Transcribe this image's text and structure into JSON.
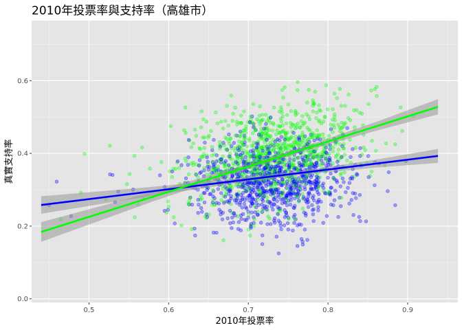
{
  "chart_data": {
    "type": "scatter",
    "title": "2010年投票率與支持率（高雄市）",
    "xlabel": "2010年投票率",
    "ylabel": "真實支持率",
    "xlim": [
      0.428,
      0.963
    ],
    "ylim": [
      -0.01,
      0.765
    ],
    "x_ticks": [
      0.5,
      0.6,
      0.7,
      0.8,
      0.9
    ],
    "x_tick_labels": [
      "0.5",
      "0.6",
      "0.7",
      "0.8",
      "0.9"
    ],
    "y_ticks": [
      0.0,
      0.2,
      0.4,
      0.6
    ],
    "y_tick_labels": [
      "0.0",
      "0.2",
      "0.4",
      "0.6"
    ],
    "grid": true,
    "legend": "none",
    "series": [
      {
        "color": "#0000ff",
        "points_shown": 900,
        "trend": {
          "x": [
            0.44,
            0.938
          ],
          "y": [
            0.258,
            0.393
          ]
        },
        "x_center": 0.73,
        "x_spread": 0.052,
        "y_center": 0.325,
        "y_spread": 0.06,
        "band_x": [
          0.44,
          0.58,
          0.7,
          0.78,
          0.86,
          0.938
        ],
        "band_halfwidth": [
          0.024,
          0.012,
          0.006,
          0.006,
          0.011,
          0.019
        ]
      },
      {
        "color": "#00ff00",
        "points_shown": 900,
        "trend": {
          "x": [
            0.44,
            0.938
          ],
          "y": [
            0.184,
            0.528
          ]
        },
        "x_center": 0.73,
        "x_spread": 0.052,
        "y_center": 0.395,
        "y_spread": 0.07,
        "band_x": [
          0.44,
          0.58,
          0.7,
          0.78,
          0.86,
          0.938
        ],
        "band_halfwidth": [
          0.027,
          0.013,
          0.007,
          0.007,
          0.012,
          0.021
        ]
      }
    ]
  }
}
